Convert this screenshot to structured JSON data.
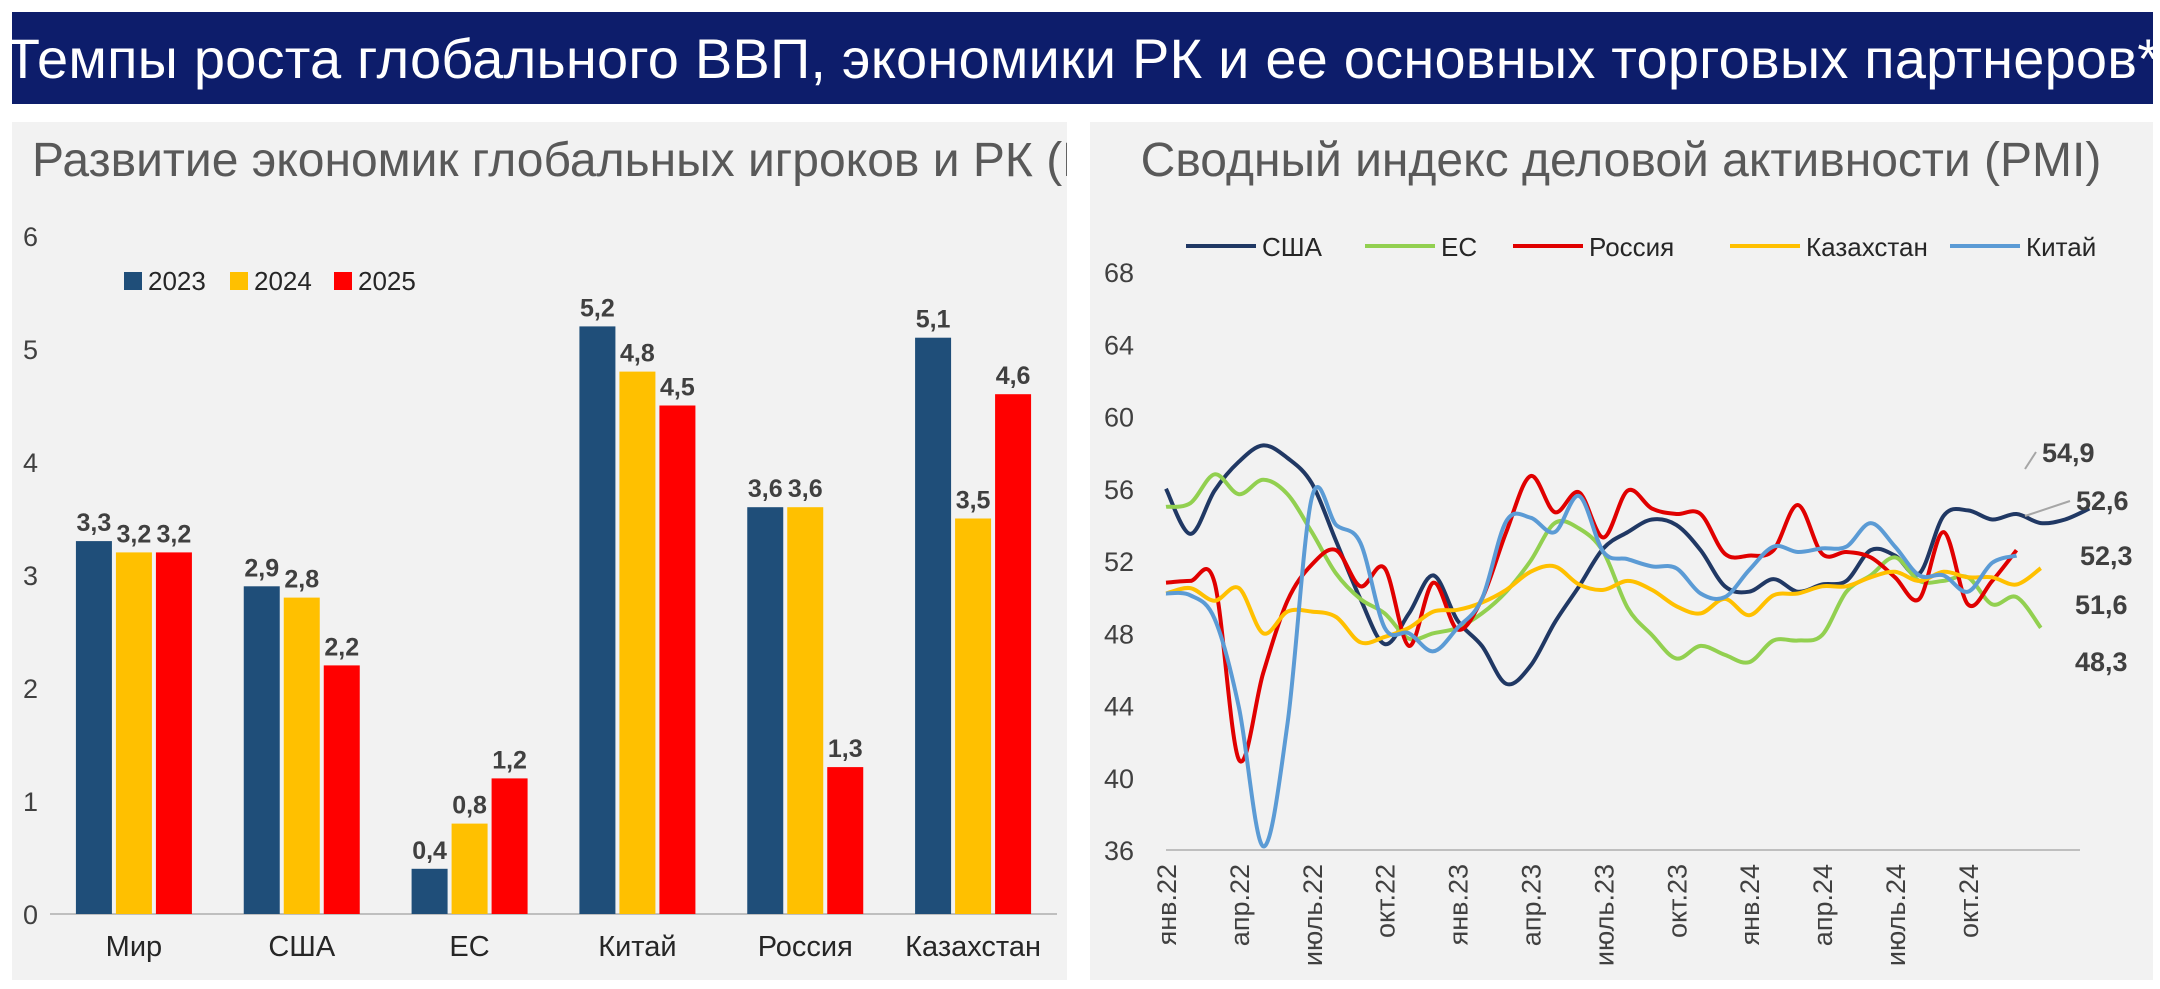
{
  "header": {
    "title": "Темпы роста глобального ВВП, экономики РК и ее основных торговых партнеров*"
  },
  "colors": {
    "banner": "#0d1d6b",
    "y2023": "#1f4e79",
    "y2024": "#ffc000",
    "y2025": "#ff0000",
    "usa": "#203864",
    "eu": "#92d050",
    "russia": "#e00000",
    "kazakhstan": "#ffc000",
    "china": "#5b9bd5"
  },
  "chart_data": [
    {
      "type": "bar",
      "title": "Развитие экономик глобальных игроков и РК (МВФ), %",
      "categories": [
        "Мир",
        "США",
        "ЕС",
        "Китай",
        "Россия",
        "Казахстан"
      ],
      "series": [
        {
          "name": "2023",
          "values": [
            3.3,
            2.9,
            0.4,
            5.2,
            3.6,
            5.1
          ],
          "labels": [
            "3,3",
            "2,9",
            "0,4",
            "5,2",
            "3,6",
            "5,1"
          ]
        },
        {
          "name": "2024",
          "values": [
            3.2,
            2.8,
            0.8,
            4.8,
            3.6,
            3.5
          ],
          "labels": [
            "3,2",
            "2,8",
            "0,8",
            "4,8",
            "3,6",
            "3,5"
          ]
        },
        {
          "name": "2025",
          "values": [
            3.2,
            2.2,
            1.2,
            4.5,
            1.3,
            4.6
          ],
          "labels": [
            "3,2",
            "2,2",
            "1,2",
            "4,5",
            "1,3",
            "4,6"
          ]
        }
      ],
      "ylim": [
        0,
        6
      ],
      "yticks": [
        "0",
        "1",
        "2",
        "3",
        "4",
        "5",
        "6"
      ],
      "legend": "top-left",
      "grid": false
    },
    {
      "type": "line",
      "title": "Сводный индекс деловой активности (PMI)",
      "x_start": "янв.22",
      "x_ticks": [
        "янв.22",
        "апр.22",
        "июль.22",
        "окт.22",
        "янв.23",
        "апр.23",
        "июль.23",
        "окт.23",
        "янв.24",
        "апр.24",
        "июль.24",
        "окт.24"
      ],
      "ylim": [
        36,
        68
      ],
      "yticks": [
        "36",
        "40",
        "44",
        "48",
        "52",
        "56",
        "60",
        "64",
        "68"
      ],
      "legend": "top",
      "grid": false,
      "series": [
        {
          "name": "США",
          "values": [
            56,
            53.5,
            55.9,
            57.5,
            58.4,
            57.7,
            56.3,
            53.1,
            49.9,
            47.4,
            49.1,
            51.2,
            48.7,
            47.3,
            45.2,
            46.2,
            48.6,
            50.6,
            52.7,
            53.6,
            54.3,
            54.0,
            52.6,
            50.6,
            50.3,
            51.0,
            50.3,
            50.7,
            50.9,
            52.6,
            52.3,
            51.3,
            54.5,
            54.8,
            54.3,
            54.6,
            54.1,
            54.3,
            54.9
          ],
          "end_label": "54,9"
        },
        {
          "name": "ЕС",
          "values": [
            55,
            55.2,
            56.8,
            55.7,
            56.5,
            55.7,
            53.6,
            51.3,
            49.9,
            49.1,
            47.7,
            48.0,
            48.3,
            49.1,
            50.3,
            52.0,
            54.1,
            53.8,
            52.5,
            49.4,
            47.9,
            46.6,
            47.3,
            46.8,
            46.4,
            47.6,
            47.6,
            47.9,
            50.3,
            51.2,
            52.2,
            50.9,
            50.9,
            51.1,
            49.6,
            50.0,
            48.3
          ],
          "end_label": "48,3"
        },
        {
          "name": "Россия",
          "values": [
            50.8,
            50.9,
            50.8,
            41.0,
            45.8,
            49.8,
            51.8,
            52.6,
            50.6,
            51.6,
            47.3,
            50.8,
            48.2,
            49.9,
            53.6,
            56.7,
            54.7,
            55.8,
            53.3,
            55.9,
            54.9,
            54.6,
            54.6,
            52.4,
            52.3,
            52.6,
            55.1,
            52.4,
            52.5,
            52.2,
            51.1,
            49.9,
            53.6,
            49.6,
            50.9,
            52.6
          ],
          "end_label": "52,6"
        },
        {
          "name": "Казахстан",
          "values": [
            50.2,
            50.5,
            49.8,
            50.5,
            48.0,
            49.2,
            49.2,
            48.9,
            47.5,
            47.8,
            48.3,
            49.2,
            49.3,
            49.7,
            50.4,
            51.4,
            51.7,
            50.7,
            50.4,
            50.9,
            50.4,
            49.5,
            49.1,
            49.9,
            49.0,
            50.1,
            50.2,
            50.6,
            50.6,
            51.1,
            51.4,
            50.9,
            51.4,
            51.1,
            51.1,
            50.7,
            51.6
          ],
          "end_label": "51,6"
        },
        {
          "name": "Китай",
          "values": [
            50.2,
            50.1,
            48.8,
            43.9,
            36.2,
            43.0,
            55.5,
            54.0,
            53.0,
            48.3,
            48.0,
            47.0,
            48.3,
            49.9,
            54.2,
            54.4,
            53.6,
            55.6,
            52.5,
            52.1,
            51.7,
            51.6,
            50.2,
            50.0,
            51.5,
            52.8,
            52.5,
            52.7,
            52.8,
            54.1,
            52.8,
            51.2,
            51.2,
            50.3,
            51.9,
            52.3
          ],
          "end_label": "52,3"
        }
      ]
    }
  ]
}
